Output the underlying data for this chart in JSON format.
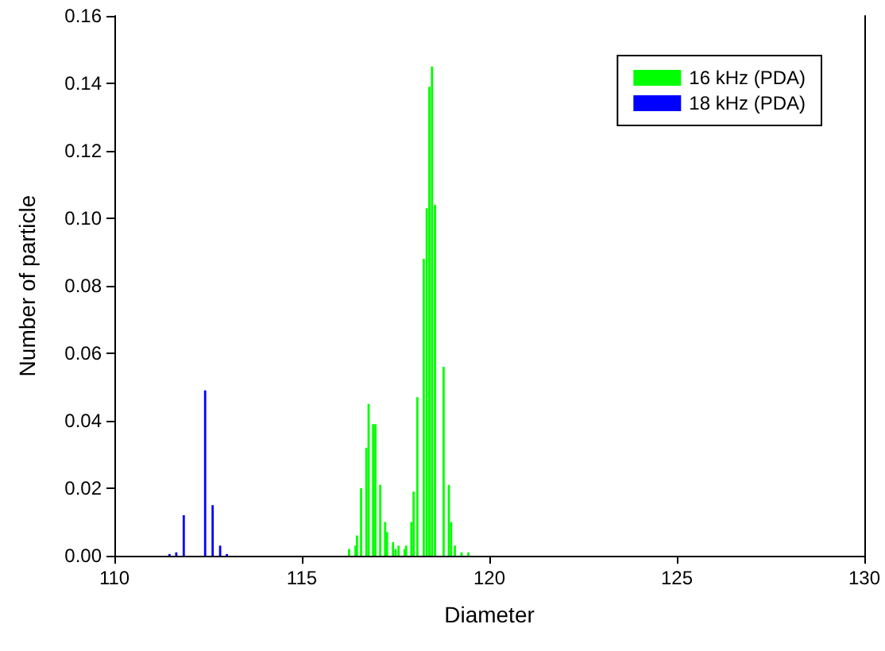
{
  "chart_data": {
    "type": "bar",
    "xlabel": "Diameter",
    "ylabel": "Number of particle",
    "xlim": [
      110,
      130
    ],
    "xticks": [
      110,
      115,
      120,
      125,
      130
    ],
    "ylim": [
      0,
      0.16
    ],
    "yticks": [
      {
        "value": 0,
        "label": "0.00"
      },
      {
        "value": 0.02,
        "label": "0.02"
      },
      {
        "value": 0.04,
        "label": "0.04"
      },
      {
        "value": 0.06,
        "label": "0.06"
      },
      {
        "value": 0.08,
        "label": "0.08"
      },
      {
        "value": 0.1,
        "label": "0.10"
      },
      {
        "value": 0.12,
        "label": "0.12"
      },
      {
        "value": 0.14,
        "label": "0.14"
      },
      {
        "value": 0.16,
        "label": "0.16"
      }
    ],
    "grid": false,
    "legend": "top right",
    "series": [
      {
        "name": "16 kHz (PDA)",
        "color": "#00ff00",
        "x": [
          116.26,
          116.43,
          116.47,
          116.58,
          116.72,
          116.78,
          116.9,
          116.96,
          117.09,
          117.22,
          117.27,
          117.43,
          117.5,
          117.58,
          117.74,
          117.78,
          117.92,
          117.98,
          118.08,
          118.25,
          118.33,
          118.4,
          118.47,
          118.55,
          118.78,
          118.92,
          118.98,
          119.08,
          119.26,
          119.44
        ],
        "values": [
          0.002,
          0.003,
          0.006,
          0.02,
          0.032,
          0.045,
          0.039,
          0.039,
          0.021,
          0.01,
          0.007,
          0.004,
          0.002,
          0.003,
          0.002,
          0.003,
          0.01,
          0.019,
          0.047,
          0.088,
          0.103,
          0.139,
          0.145,
          0.104,
          0.056,
          0.021,
          0.01,
          0.003,
          0.001,
          0.001
        ]
      },
      {
        "name": "18 kHz (PDA)",
        "color": "#0000ff",
        "x": [
          111.47,
          111.65,
          111.85,
          112.42,
          112.62,
          112.82,
          113.0
        ],
        "values": [
          0.0005,
          0.001,
          0.012,
          0.049,
          0.015,
          0.003,
          0.0005
        ]
      }
    ]
  }
}
